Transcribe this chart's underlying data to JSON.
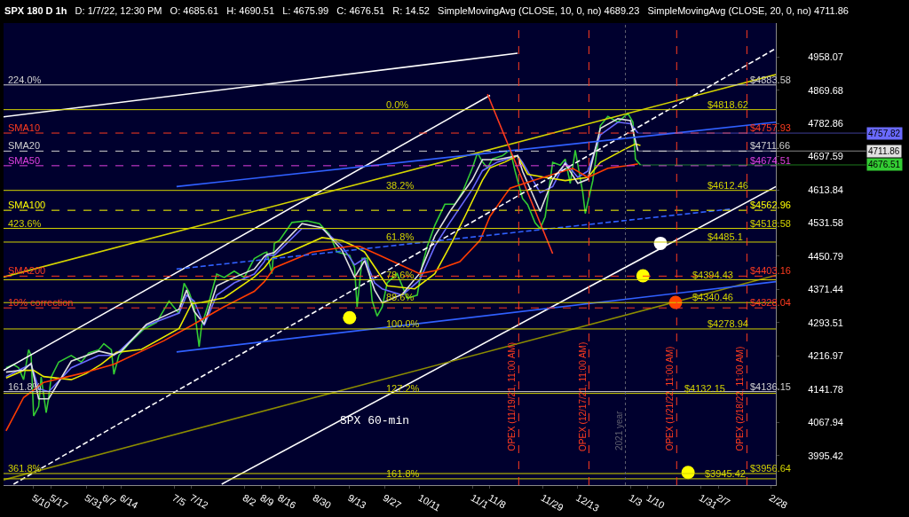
{
  "chart_data": {
    "type": "line",
    "title": "SPX 180 D 1h",
    "subtitle": "D: 1/7/22, 12:30 PM   O: 4685.61   H: 4690.51   L: 4675.99   C: 4676.51   R: 14.52   SimpleMovingAvg (CLOSE, 10, 0, no) 4689.23   SimpleMovingAvg (CLOSE, 20, 0, no) 4711.86",
    "log": "y",
    "grid": false,
    "xlim": [
      "2021-04-28",
      "2022-03-02"
    ],
    "xticks": [
      {
        "value": "2021-05-10",
        "label": "5/10"
      },
      {
        "value": "2021-05-17",
        "label": "5/17"
      },
      {
        "value": "2021-05-31",
        "label": "5/31"
      },
      {
        "value": "2021-06-07",
        "label": "6/7"
      },
      {
        "value": "2021-06-14",
        "label": "6/14"
      },
      {
        "value": "2021-07-05",
        "label": "7/5"
      },
      {
        "value": "2021-07-12",
        "label": "7/12"
      },
      {
        "value": "2021-08-02",
        "label": "8/2"
      },
      {
        "value": "2021-08-09",
        "label": "8/9"
      },
      {
        "value": "2021-08-16",
        "label": "8/16"
      },
      {
        "value": "2021-08-30",
        "label": "8/30"
      },
      {
        "value": "2021-09-13",
        "label": "9/13"
      },
      {
        "value": "2021-09-27",
        "label": "9/27"
      },
      {
        "value": "2021-10-11",
        "label": "10/11"
      },
      {
        "value": "2021-11-01",
        "label": "11/1"
      },
      {
        "value": "2021-11-08",
        "label": "11/8"
      },
      {
        "value": "2021-11-29",
        "label": "11/29"
      },
      {
        "value": "2021-12-13",
        "label": "12/13"
      },
      {
        "value": "2022-01-03",
        "label": "1/3"
      },
      {
        "value": "2022-01-10",
        "label": "1/10"
      },
      {
        "value": "2022-01-31",
        "label": "1/31"
      },
      {
        "value": "2022-02-07",
        "label": "2/7"
      },
      {
        "value": "2022-02-28",
        "label": "2/28"
      }
    ],
    "ylim": [
      3932,
      5050
    ],
    "yticks": [
      4958.07,
      4869.68,
      4782.86,
      4697.59,
      4613.84,
      4531.58,
      4450.79,
      4371.44,
      4293.51,
      4216.97,
      4141.78,
      4067.94,
      3995.42
    ],
    "series": [
      {
        "color": "#33cc33",
        "x": [
          "2021-04-29",
          "2021-05-02",
          "2021-05-04",
          "2021-05-06",
          "2021-05-08",
          "2021-05-09",
          "2021-05-10",
          "2021-05-12",
          "2021-05-13",
          "2021-05-15",
          "2021-05-16",
          "2021-05-17",
          "2021-05-20",
          "2021-05-25",
          "2021-05-29",
          "2021-06-01",
          "2021-06-05",
          "2021-06-07",
          "2021-06-10",
          "2021-06-11",
          "2021-06-13",
          "2021-06-17",
          "2021-06-23",
          "2021-06-28",
          "2021-07-03",
          "2021-07-07",
          "2021-07-09",
          "2021-07-11",
          "2021-07-13",
          "2021-07-15",
          "2021-07-16",
          "2021-07-19",
          "2021-07-22",
          "2021-07-25",
          "2021-07-29",
          "2021-08-02",
          "2021-08-06",
          "2021-08-10",
          "2021-08-11",
          "2021-08-13",
          "2021-08-14",
          "2021-08-16",
          "2021-08-21",
          "2021-08-27",
          "2021-09-01",
          "2021-09-05",
          "2021-09-08",
          "2021-09-13",
          "2021-09-15",
          "2021-09-16",
          "2021-09-17",
          "2021-09-18",
          "2021-09-20",
          "2021-09-21",
          "2021-09-22",
          "2021-09-24",
          "2021-09-26",
          "2021-09-28",
          "2021-10-02",
          "2021-10-06",
          "2021-10-10",
          "2021-10-12",
          "2021-10-14",
          "2021-10-17",
          "2021-10-21",
          "2021-10-25",
          "2021-10-28",
          "2021-11-01",
          "2021-11-03",
          "2021-11-05",
          "2021-11-07",
          "2021-11-09",
          "2021-11-13",
          "2021-11-16",
          "2021-11-18",
          "2021-11-21",
          "2021-11-23",
          "2021-11-26",
          "2021-11-28",
          "2021-11-30",
          "2021-12-03",
          "2021-12-06",
          "2021-12-08",
          "2021-12-10",
          "2021-12-12",
          "2021-12-15",
          "2021-12-16",
          "2021-12-19",
          "2021-12-22",
          "2021-12-25",
          "2021-12-29",
          "2022-01-02",
          "2022-01-04",
          "2022-01-05",
          "2022-01-07"
        ],
        "values": [
          4190,
          4197,
          4190,
          4163,
          4231,
          4218,
          4082,
          4103,
          4169,
          4089,
          4122,
          4169,
          4203,
          4218,
          4203,
          4224,
          4231,
          4245,
          4231,
          4175,
          4218,
          4245,
          4279,
          4294,
          4344,
          4315,
          4386,
          4365,
          4330,
          4238,
          4287,
          4343,
          4408,
          4400,
          4415,
          4400,
          4445,
          4459,
          4461,
          4409,
          4482,
          4489,
          4533,
          4537,
          4530,
          4504,
          4461,
          4453,
          4423,
          4330,
          4387,
          4446,
          4446,
          4409,
          4345,
          4309,
          4330,
          4387,
          4409,
          4351,
          4358,
          4430,
          4475,
          4526,
          4578,
          4578,
          4608,
          4669,
          4707,
          4684,
          4669,
          4692,
          4700,
          4715,
          4661,
          4592,
          4577,
          4532,
          4518,
          4547,
          4683,
          4676,
          4691,
          4630,
          4714,
          4607,
          4555,
          4637,
          4777,
          4801,
          4786,
          4809,
          4786,
          4691,
          4676.51
        ]
      },
      {
        "color": "#6a6aff",
        "x": [
          "2021-04-29",
          "2021-05-06",
          "2021-05-09",
          "2021-05-12",
          "2021-05-16",
          "2021-05-25",
          "2021-06-05",
          "2021-06-11",
          "2021-06-14",
          "2021-06-24",
          "2021-07-07",
          "2021-07-10",
          "2021-07-13",
          "2021-07-17",
          "2021-07-22",
          "2021-07-29",
          "2021-08-06",
          "2021-08-10",
          "2021-08-11",
          "2021-08-14",
          "2021-08-25",
          "2021-09-02",
          "2021-09-10",
          "2021-09-15",
          "2021-09-19",
          "2021-09-23",
          "2021-09-26",
          "2021-10-04",
          "2021-10-11",
          "2021-10-17",
          "2021-10-23",
          "2021-11-01",
          "2021-11-05",
          "2021-11-11",
          "2021-11-19",
          "2021-11-21",
          "2021-11-28",
          "2021-12-03",
          "2021-12-08",
          "2021-12-13",
          "2021-12-17",
          "2021-12-22",
          "2021-12-29",
          "2022-01-03",
          "2022-01-06"
        ],
        "values": [
          4170,
          4190,
          4198,
          4143,
          4136,
          4190,
          4218,
          4218,
          4232,
          4287,
          4316,
          4358,
          4344,
          4287,
          4358,
          4387,
          4408,
          4438,
          4453,
          4453,
          4518,
          4518,
          4475,
          4430,
          4446,
          4387,
          4373,
          4358,
          4394,
          4475,
          4533,
          4616,
          4662,
          4684,
          4700,
          4683,
          4607,
          4622,
          4683,
          4645,
          4661,
          4753,
          4786,
          4782,
          4757.82
        ]
      },
      {
        "color": "#e8e800",
        "x": [
          "2021-04-29",
          "2021-05-06",
          "2021-05-10",
          "2021-05-14",
          "2021-05-25",
          "2021-05-31",
          "2021-06-06",
          "2021-06-12",
          "2021-06-22",
          "2021-07-07",
          "2021-07-12",
          "2021-07-16",
          "2021-07-25",
          "2021-08-06",
          "2021-08-10",
          "2021-08-13",
          "2021-08-20",
          "2021-09-02",
          "2021-09-10",
          "2021-09-15",
          "2021-09-19",
          "2021-09-24",
          "2021-09-28",
          "2021-10-09",
          "2021-10-17",
          "2021-10-23",
          "2021-10-29",
          "2021-11-05",
          "2021-11-08",
          "2021-11-14",
          "2021-11-19",
          "2021-11-23",
          "2021-11-30",
          "2021-12-08",
          "2021-12-17",
          "2021-12-22",
          "2021-12-31",
          "2022-01-05",
          "2022-01-07"
        ],
        "values": [
          4167,
          4184,
          4184,
          4170,
          4163,
          4177,
          4198,
          4225,
          4232,
          4280,
          4338,
          4341,
          4352,
          4401,
          4423,
          4446,
          4461,
          4496,
          4489,
          4475,
          4461,
          4416,
          4380,
          4373,
          4409,
          4475,
          4548,
          4638,
          4669,
          4684,
          4700,
          4653,
          4645,
          4637,
          4645,
          4683,
          4714,
          4730,
          4726
        ]
      },
      {
        "color": "#e0e0e0",
        "x": [
          "2021-04-29",
          "2021-05-06",
          "2021-05-09",
          "2021-05-12",
          "2021-05-16",
          "2021-05-25",
          "2021-06-05",
          "2021-06-11",
          "2021-06-14",
          "2021-06-24",
          "2021-07-07",
          "2021-07-10",
          "2021-07-13",
          "2021-07-17",
          "2021-07-22",
          "2021-07-29",
          "2021-08-06",
          "2021-08-10",
          "2021-08-11",
          "2021-08-14",
          "2021-08-25",
          "2021-09-02",
          "2021-09-10",
          "2021-09-15",
          "2021-09-19",
          "2021-09-23",
          "2021-09-26",
          "2021-10-04",
          "2021-10-11",
          "2021-10-17",
          "2021-10-23",
          "2021-11-01",
          "2021-11-05",
          "2021-11-11",
          "2021-11-19",
          "2021-11-21",
          "2021-11-28",
          "2021-12-03",
          "2021-12-08",
          "2021-12-13",
          "2021-12-17",
          "2021-12-22",
          "2021-12-29",
          "2022-01-03",
          "2022-01-06"
        ],
        "values": [
          4180,
          4185,
          4200,
          4120,
          4120,
          4205,
          4228,
          4220,
          4228,
          4290,
          4325,
          4370,
          4320,
          4290,
          4380,
          4400,
          4420,
          4450,
          4455,
          4460,
          4530,
          4520,
          4465,
          4400,
          4440,
          4370,
          4340,
          4360,
          4410,
          4500,
          4560,
          4640,
          4690,
          4690,
          4700,
          4660,
          4560,
          4640,
          4680,
          4630,
          4640,
          4770,
          4795,
          4790,
          4711.86
        ]
      },
      {
        "color": "#ff3c00",
        "x": [
          "2021-04-29",
          "2021-05-06",
          "2021-05-14",
          "2021-05-29",
          "2021-06-11",
          "2021-07-01",
          "2021-07-12",
          "2021-07-25",
          "2021-08-06",
          "2021-08-10",
          "2021-08-14",
          "2021-08-29",
          "2021-09-13",
          "2021-09-17",
          "2021-09-25",
          "2021-10-11",
          "2021-10-17",
          "2021-10-27",
          "2021-11-04",
          "2021-11-08",
          "2021-11-14",
          "2021-11-16",
          "2021-11-25",
          "2021-12-11",
          "2021-12-17",
          "2021-12-25",
          "2022-01-03",
          "2022-01-06"
        ],
        "values": [
          4049,
          4123,
          4157,
          4177,
          4198,
          4252,
          4287,
          4331,
          4367,
          4390,
          4423,
          4461,
          4475,
          4475,
          4453,
          4409,
          4416,
          4438,
          4489,
          4548,
          4601,
          4618,
          4637,
          4668,
          4645,
          4668,
          4676,
          4679
        ]
      },
      {
        "color": "#ffffff",
        "x": [
          "2021-04-28",
          "2021-11-19"
        ],
        "values": [
          4800,
          4968
        ]
      },
      {
        "color": "#ffffff",
        "x": [
          "2021-04-28",
          "2021-11-08"
        ],
        "values": [
          4184,
          4856
        ]
      },
      {
        "color": "#ffffff",
        "line_style": "dashed",
        "x": [
          "2021-05-02",
          "2022-03-02"
        ],
        "values": [
          3934,
          4981
        ]
      },
      {
        "color": "#ffffff",
        "x": [
          "2021-07-24",
          "2022-03-02"
        ],
        "values": [
          3934,
          4622
        ]
      },
      {
        "color": "#d4d400",
        "x": [
          "2021-04-28",
          "2022-03-02"
        ],
        "values": [
          4401,
          4911
        ]
      },
      {
        "color": "#8c8c00",
        "x": [
          "2021-04-28",
          "2022-03-02"
        ],
        "values": [
          3943,
          4405
        ]
      },
      {
        "color": "#3060ff",
        "x": [
          "2021-07-06",
          "2022-03-02"
        ],
        "values": [
          4622,
          4786
        ]
      },
      {
        "color": "#3060ff",
        "x": [
          "2021-07-06",
          "2022-03-02"
        ],
        "values": [
          4226,
          4390
        ]
      },
      {
        "color": "#3060ff",
        "line_style": "dashed",
        "x": [
          "2021-07-06",
          "2022-02-12"
        ],
        "values": [
          4420,
          4566
        ]
      },
      {
        "color": "#ff3b1f",
        "x": [
          "2021-11-07",
          "2021-12-03"
        ],
        "values": [
          4859,
          4457
        ]
      },
      {
        "type": "scatter",
        "marker": "circle",
        "colors": [
          "#ffff00",
          "#ffff00",
          "#ffffff",
          "#ff4400",
          "#ffff00"
        ],
        "x": [
          "2021-09-13",
          "2022-01-08",
          "2022-01-15",
          "2022-01-21",
          "2022-01-26"
        ],
        "values": [
          4305,
          4404,
          4482,
          4341,
          3959
        ]
      }
    ],
    "ref_lines": [
      {
        "axis": "y",
        "value": 4883.58,
        "color": "#d0d0d0"
      },
      {
        "axis": "y",
        "value": 4818.62,
        "color": "#d4d400"
      },
      {
        "axis": "y",
        "value": 4757.93,
        "color": "#ff3b1f",
        "line_style": "dashed"
      },
      {
        "axis": "y",
        "value": 4711.66,
        "color": "#d0d0d0",
        "line_style": "dashed"
      },
      {
        "axis": "y",
        "value": 4674.51,
        "color": "#e040e0",
        "line_style": "dashed"
      },
      {
        "axis": "y",
        "value": 4612.46,
        "color": "#d4d400"
      },
      {
        "axis": "y",
        "value": 4562.96,
        "color": "#ffff00",
        "line_style": "dashed"
      },
      {
        "axis": "y",
        "value": 4518.58,
        "color": "#d4d400"
      },
      {
        "axis": "y",
        "value": 4485.1,
        "color": "#d4d400"
      },
      {
        "axis": "y",
        "value": 4403.16,
        "color": "#ff3b1f",
        "line_style": "dashed"
      },
      {
        "axis": "y",
        "value": 4394.43,
        "color": "#d4d400"
      },
      {
        "axis": "y",
        "value": 4340.46,
        "color": "#d4d400"
      },
      {
        "axis": "y",
        "value": 4328.04,
        "color": "#ff3b1f",
        "line_style": "dashed"
      },
      {
        "axis": "y",
        "value": 4278.94,
        "color": "#d4d400"
      },
      {
        "axis": "y",
        "value": 4136.15,
        "color": "#d0d0d0"
      },
      {
        "axis": "y",
        "value": 4132.15,
        "color": "#d4d400"
      },
      {
        "axis": "y",
        "value": 3956.64,
        "color": "#d4d400"
      },
      {
        "axis": "y",
        "value": 3945.42,
        "color": "#d4d400"
      },
      {
        "axis": "x",
        "value": "2021-11-19T11:00",
        "label": "OPEX (11/19/21, 11:00 AM)",
        "color": "#ff3b1f",
        "line_style": "dashed"
      },
      {
        "axis": "x",
        "value": "2021-12-17T11:00",
        "label": "OPEX (12/17/21, 11:00 AM)",
        "color": "#ff3b1f",
        "line_style": "dashed"
      },
      {
        "axis": "x",
        "value": "2022-01-01",
        "label": "2021 year",
        "color": "#606070",
        "line_style": "dotted"
      },
      {
        "axis": "x",
        "value": "2022-01-21T11:00",
        "label": "OPEX (1/21/22, 11:00 AM)",
        "color": "#ff3b1f",
        "line_style": "dashed"
      },
      {
        "axis": "x",
        "value": "2022-02-18T11:00",
        "label": "OPEX (2/18/22, 11:00 AM)",
        "color": "#ff3b1f",
        "line_style": "dashed"
      }
    ],
    "annotations": [
      {
        "text": "224.0%",
        "x": "2021-04-29",
        "y": 4883.58
      },
      {
        "text": "SMA10",
        "x": "2021-04-29",
        "y": 4757.93
      },
      {
        "text": "SMA20",
        "x": "2021-04-29",
        "y": 4711.66
      },
      {
        "text": "SMA50",
        "x": "2021-04-29",
        "y": 4674.51
      },
      {
        "text": "SMA100",
        "x": "2021-04-29",
        "y": 4562.96
      },
      {
        "text": "423.6%",
        "x": "2021-04-29",
        "y": 4518.58
      },
      {
        "text": "SMA200",
        "x": "2021-04-29",
        "y": 4403.16
      },
      {
        "text": "10% correction",
        "x": "2021-04-29",
        "y": 4328.04
      },
      {
        "text": "161.8%",
        "x": "2021-04-29",
        "y": 4136.15
      },
      {
        "text": "361.8%",
        "x": "2021-04-29",
        "y": 3956.64
      },
      {
        "text": "0.0%",
        "x": "2021-09-27",
        "y": 4818.62
      },
      {
        "text": "38.2%",
        "x": "2021-09-27",
        "y": 4612.46
      },
      {
        "text": "61.8%",
        "x": "2021-09-27",
        "y": 4485.1
      },
      {
        "text": "78.6%",
        "x": "2021-09-27",
        "y": 4394.43
      },
      {
        "text": "88.6%",
        "x": "2021-09-27",
        "y": 4340.46
      },
      {
        "text": "100.0%",
        "x": "2021-09-27",
        "y": 4278.94
      },
      {
        "text": "127.2%",
        "x": "2021-09-27",
        "y": 4132.15
      },
      {
        "text": "161.8%",
        "x": "2021-09-27",
        "y": 3945.42
      },
      {
        "text": "$4818.62",
        "x": "2022-02-02",
        "y": 4818.62
      },
      {
        "text": "$4612.46",
        "x": "2022-02-02",
        "y": 4612.46
      },
      {
        "text": "$4485.1",
        "x": "2022-02-02",
        "y": 4485.1
      },
      {
        "text": "$4394.43",
        "x": "2022-01-27",
        "y": 4394.43
      },
      {
        "text": "$4340.46",
        "x": "2022-01-27",
        "y": 4340.46
      },
      {
        "text": "$4278.94",
        "x": "2022-02-02",
        "y": 4278.94
      },
      {
        "text": "$4132.15",
        "x": "2022-01-24",
        "y": 4132.15
      },
      {
        "text": "$3945.42",
        "x": "2022-02-01",
        "y": 3945.42
      },
      {
        "text": "$4883.58",
        "x": "2022-02-19",
        "y": 4883.58
      },
      {
        "text": "$4757.93",
        "x": "2022-02-19",
        "y": 4757.93
      },
      {
        "text": "$4711.66",
        "x": "2022-02-19",
        "y": 4711.66
      },
      {
        "text": "$4674.51",
        "x": "2022-02-19",
        "y": 4674.51
      },
      {
        "text": "$4562.96",
        "x": "2022-02-19",
        "y": 4562.96
      },
      {
        "text": "$4518.58",
        "x": "2022-02-19",
        "y": 4518.58
      },
      {
        "text": "$4403.16",
        "x": "2022-02-19",
        "y": 4403.16
      },
      {
        "text": "$4328.04",
        "x": "2022-02-19",
        "y": 4328.04
      },
      {
        "text": "$4136.15",
        "x": "2022-02-19",
        "y": 4136.15
      },
      {
        "text": "$3956.64",
        "x": "2022-02-19",
        "y": 3956.64
      },
      {
        "text": "4757.82",
        "x": "2022-01-06",
        "y": 4757.82
      },
      {
        "text": "4711.86",
        "x": "2022-01-06",
        "y": 4711.86
      },
      {
        "text": "4676.51",
        "x": "2022-01-07",
        "y": 4676.51
      },
      "SPX 60-min"
    ]
  }
}
